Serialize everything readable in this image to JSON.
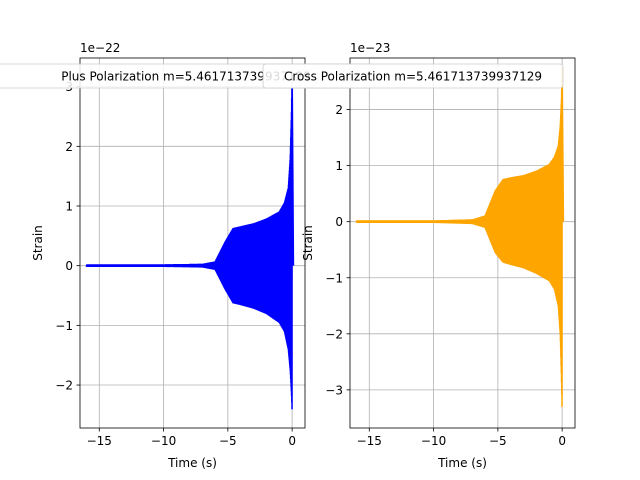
{
  "chart_data": [
    {
      "type": "line",
      "xlabel": "Time (s)",
      "ylabel": "Strain",
      "offset_text": "1e−22",
      "scale_exponent": -22,
      "xlim": [
        -16.5,
        1
      ],
      "ylim": [
        -2.72,
        3.48
      ],
      "xticks": [
        -15,
        -10,
        -5,
        0
      ],
      "xtick_labels": [
        "−15",
        "−10",
        "−5",
        "0"
      ],
      "yticks": [
        -2,
        -1,
        0,
        1,
        2,
        3
      ],
      "ytick_labels": [
        "−2",
        "−1",
        "0",
        "1",
        "2",
        "3"
      ],
      "grid": true,
      "legend": {
        "text": "Plus Polarization m=5.461713739937129",
        "placement": "top-center"
      },
      "series": [
        {
          "name": "Plus Polarization m=5.461713739937129",
          "color": "#0000ff",
          "t_start": -16,
          "t_end": 0.1,
          "envelope_t": [
            -16,
            -10,
            -7,
            -6,
            -5.2,
            -4.6,
            -4,
            -3,
            -2,
            -1,
            -0.6,
            -0.3,
            -0.15,
            -0.05,
            0
          ],
          "envelope_upper": [
            0.01,
            0.01,
            0.02,
            0.06,
            0.4,
            0.62,
            0.65,
            0.7,
            0.78,
            0.9,
            1.05,
            1.3,
            1.8,
            2.6,
            3.3
          ],
          "envelope_lower": [
            -0.01,
            -0.01,
            -0.02,
            -0.06,
            -0.4,
            -0.62,
            -0.65,
            -0.71,
            -0.8,
            -0.95,
            -1.1,
            -1.4,
            -1.75,
            -2.15,
            -2.45
          ],
          "ringdown_value": 0.0
        }
      ]
    },
    {
      "type": "line",
      "xlabel": "Time (s)",
      "ylabel": "Strain",
      "offset_text": "1e−23",
      "scale_exponent": -23,
      "xlim": [
        -16.5,
        1
      ],
      "ylim": [
        -3.68,
        2.92
      ],
      "xticks": [
        -15,
        -10,
        -5,
        0
      ],
      "xtick_labels": [
        "−15",
        "−10",
        "−5",
        "0"
      ],
      "yticks": [
        -3,
        -2,
        -1,
        0,
        1,
        2
      ],
      "ytick_labels": [
        "−3",
        "−2",
        "−1",
        "0",
        "1",
        "2"
      ],
      "grid": true,
      "legend": {
        "text": "Cross Polarization m=5.461713739937129",
        "placement": "top-center"
      },
      "series": [
        {
          "name": "Cross Polarization m=5.461713739937129",
          "color": "#ffa500",
          "t_start": -16,
          "t_end": 0.1,
          "envelope_t": [
            -16,
            -10,
            -7,
            -6,
            -5.2,
            -4.6,
            -4,
            -3,
            -2,
            -1,
            -0.6,
            -0.3,
            -0.15,
            -0.05,
            0
          ],
          "envelope_upper": [
            0.01,
            0.01,
            0.03,
            0.1,
            0.55,
            0.75,
            0.78,
            0.82,
            0.9,
            1.02,
            1.15,
            1.35,
            1.7,
            2.2,
            2.75
          ],
          "envelope_lower": [
            -0.01,
            -0.01,
            -0.03,
            -0.1,
            -0.55,
            -0.72,
            -0.76,
            -0.82,
            -0.92,
            -1.05,
            -1.2,
            -1.5,
            -2.0,
            -2.8,
            -3.4
          ],
          "ringdown_value": 0.0
        }
      ]
    }
  ]
}
